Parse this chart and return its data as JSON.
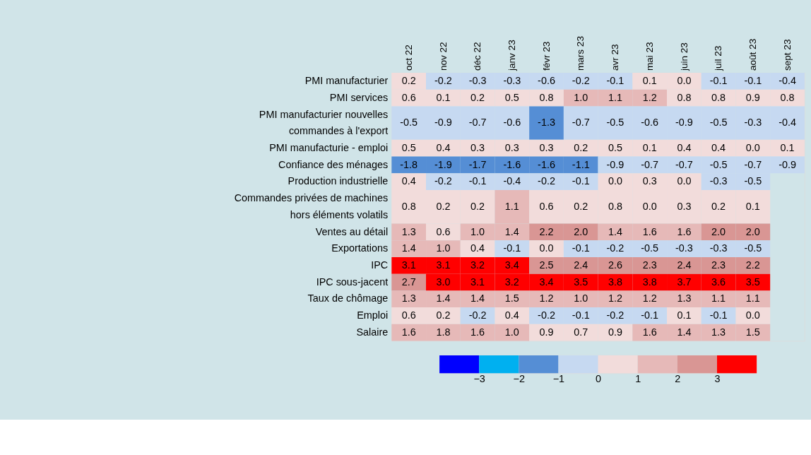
{
  "chart_data": {
    "type": "heatmap",
    "categories": [
      "oct 22",
      "nov 22",
      "déc 22",
      "janv 23",
      "févr 23",
      "mars 23",
      "avr 23",
      "mai 23",
      "juin 23",
      "juil 23",
      "août 23",
      "sept 23"
    ],
    "y_categories": [
      "PMI manufacturier",
      "PMI services",
      "PMI manufacturier nouvelles\ncommandes à l'export",
      "PMI manufacturie - emploi",
      "Confiance des ménages",
      "Production industrielle",
      "Commandes privées de machines\nhors éléments volatils",
      "Ventes au détail",
      "Exportations",
      "IPC",
      "IPC sous-jacent",
      "Taux de chômage",
      "Emploi",
      "Salaire"
    ],
    "cells": [
      [
        0.2,
        -0.2,
        -0.3,
        -0.3,
        -0.6,
        -0.2,
        -0.1,
        0.1,
        0.0,
        -0.1,
        -0.1,
        -0.4
      ],
      [
        0.6,
        0.1,
        0.2,
        0.5,
        0.8,
        1.0,
        1.1,
        1.2,
        0.8,
        0.8,
        0.9,
        0.8
      ],
      [
        -0.5,
        -0.9,
        -0.7,
        -0.6,
        -1.3,
        -0.7,
        -0.5,
        -0.6,
        -0.9,
        -0.5,
        -0.3,
        -0.4
      ],
      [
        0.5,
        0.4,
        0.3,
        0.3,
        0.3,
        0.2,
        0.5,
        0.1,
        0.4,
        0.4,
        0.0,
        0.1
      ],
      [
        -1.8,
        -1.9,
        -1.7,
        -1.6,
        -1.6,
        -1.1,
        -0.9,
        -0.7,
        -0.7,
        -0.5,
        -0.7,
        -0.9
      ],
      [
        0.4,
        -0.2,
        -0.1,
        -0.4,
        -0.2,
        -0.1,
        0.0,
        0.3,
        0.0,
        -0.3,
        -0.5,
        null
      ],
      [
        0.8,
        0.2,
        0.2,
        1.1,
        0.6,
        0.2,
        0.8,
        0.0,
        0.3,
        0.2,
        0.1,
        null
      ],
      [
        1.3,
        0.6,
        1.0,
        1.4,
        2.2,
        2.0,
        1.4,
        1.6,
        1.6,
        2.0,
        2.0,
        null
      ],
      [
        1.4,
        1.0,
        0.4,
        -0.1,
        0.0,
        -0.1,
        -0.2,
        -0.5,
        -0.3,
        -0.3,
        -0.5,
        null
      ],
      [
        3.1,
        3.1,
        3.2,
        3.4,
        2.5,
        2.4,
        2.6,
        2.3,
        2.4,
        2.3,
        2.2,
        null
      ],
      [
        2.7,
        3.0,
        3.1,
        3.2,
        3.4,
        3.5,
        3.8,
        3.8,
        3.7,
        3.6,
        3.5,
        null
      ],
      [
        1.3,
        1.4,
        1.4,
        1.5,
        1.2,
        1.0,
        1.2,
        1.2,
        1.3,
        1.1,
        1.1,
        null
      ],
      [
        0.6,
        0.2,
        -0.2,
        0.4,
        -0.2,
        -0.1,
        -0.2,
        -0.1,
        0.1,
        -0.1,
        0.0,
        null
      ],
      [
        1.6,
        1.8,
        1.6,
        1.0,
        0.9,
        0.7,
        0.9,
        1.6,
        1.4,
        1.3,
        1.5,
        null
      ]
    ],
    "cell_labels": [
      [
        "0.2",
        "-0.2",
        "-0.3",
        "-0.3",
        "-0.6",
        "-0.2",
        "-0.1",
        "0.1",
        "0.0",
        "-0.1",
        "-0.1",
        "-0.4"
      ],
      [
        "0.6",
        "0.1",
        "0.2",
        "0.5",
        "0.8",
        "1.0",
        "1.1",
        "1.2",
        "0.8",
        "0.8",
        "0.9",
        "0.8"
      ],
      [
        "-0.5",
        "-0.9",
        "-0.7",
        "-0.6",
        "-1.3",
        "-0.7",
        "-0.5",
        "-0.6",
        "-0.9",
        "-0.5",
        "-0.3",
        "-0.4"
      ],
      [
        "0.5",
        "0.4",
        "0.3",
        "0.3",
        "0.3",
        "0.2",
        "0.5",
        "0.1",
        "0.4",
        "0.4",
        "0.0",
        "0.1"
      ],
      [
        "-1.8",
        "-1.9",
        "-1.7",
        "-1.6",
        "-1.6",
        "-1.1",
        "-0.9",
        "-0.7",
        "-0.7",
        "-0.5",
        "-0.7",
        "-0.9"
      ],
      [
        "0.4",
        "-0.2",
        "-0.1",
        "-0.4",
        "-0.2",
        "-0.1",
        "0.0",
        "0.3",
        "0.0",
        "-0.3",
        "-0.5",
        null
      ],
      [
        "0.8",
        "0.2",
        "0.2",
        "1.1",
        "0.6",
        "0.2",
        "0.8",
        "0.0",
        "0.3",
        "0.2",
        "0.1",
        null
      ],
      [
        "1.3",
        "0.6",
        "1.0",
        "1.4",
        "2.2",
        "2.0",
        "1.4",
        "1.6",
        "1.6",
        "2.0",
        "2.0",
        null
      ],
      [
        "1.4",
        "1.0",
        "0.4",
        "-0.1",
        "0.0",
        "-0.1",
        "-0.2",
        "-0.5",
        "-0.3",
        "-0.3",
        "-0.5",
        null
      ],
      [
        "3.1",
        "3.1",
        "3.2",
        "3.4",
        "2.5",
        "2.4",
        "2.6",
        "2.3",
        "2.4",
        "2.3",
        "2.2",
        null
      ],
      [
        "2.7",
        "3.0",
        "3.1",
        "3.2",
        "3.4",
        "3.5",
        "3.8",
        "3.8",
        "3.7",
        "3.6",
        "3.5",
        null
      ],
      [
        "1.3",
        "1.4",
        "1.4",
        "1.5",
        "1.2",
        "1.0",
        "1.2",
        "1.2",
        "1.3",
        "1.1",
        "1.1",
        null
      ],
      [
        "0.6",
        "0.2",
        "-0.2",
        "0.4",
        "-0.2",
        "-0.1",
        "-0.2",
        "-0.1",
        "0.1",
        "-0.1",
        "0.0",
        null
      ],
      [
        "1.6",
        "1.8",
        "1.6",
        "1.0",
        "0.9",
        "0.7",
        "0.9",
        "1.6",
        "1.4",
        "1.3",
        "1.5",
        null
      ]
    ],
    "clim": [
      -4,
      4
    ],
    "cticks": [
      -3,
      -2,
      -1,
      0,
      1,
      2,
      3
    ],
    "colors": [
      "#0000ff",
      "#00b0f0",
      "#558ed5",
      "#c6d9f1",
      "#f2dcdb",
      "#e6b9b8",
      "#d99694",
      "#ff0000"
    ],
    "data_labels": true
  }
}
